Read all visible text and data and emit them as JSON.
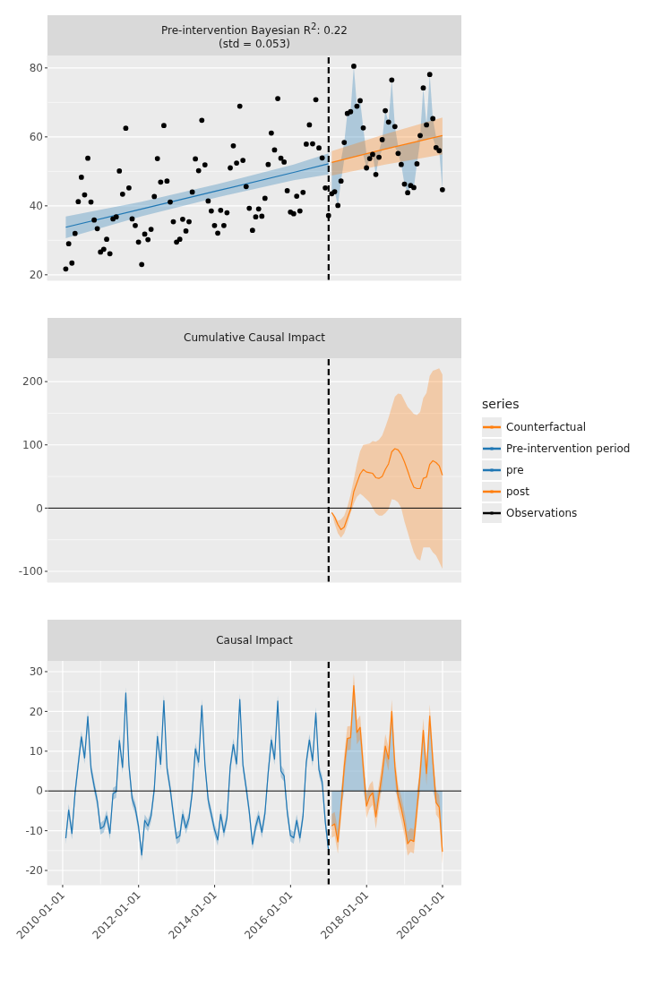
{
  "chart_data": [
    {
      "type": "scatter",
      "title": "Pre-intervention Bayesian R$^{2}$: 0.22",
      "subtitle": "(std = 0.053)",
      "grid": true,
      "tick_labels": "y",
      "legend": "right",
      "legend_title": "series",
      "xlim": [
        "2009-08-08",
        "2020-06-30"
      ],
      "xticks": [
        "2010-01-01",
        "2012-01-01",
        "2014-01-01",
        "2016-01-01",
        "2018-01-01",
        "2020-01-01"
      ],
      "ylim": [
        18.4,
        83.6
      ],
      "yticks": [
        20,
        40,
        60,
        80
      ],
      "ref_lines": [
        {
          "axis": "x",
          "value": "2017-01-01",
          "color": "#000000",
          "line_style": "dashed"
        }
      ],
      "x": [
        "2010-01-31",
        "2010-02-28",
        "2010-03-31",
        "2010-04-30",
        "2010-05-31",
        "2010-06-30",
        "2010-07-31",
        "2010-08-31",
        "2010-09-30",
        "2010-10-31",
        "2010-11-30",
        "2010-12-31",
        "2011-01-31",
        "2011-02-28",
        "2011-03-31",
        "2011-04-30",
        "2011-05-31",
        "2011-06-30",
        "2011-07-31",
        "2011-08-31",
        "2011-09-30",
        "2011-10-31",
        "2011-11-30",
        "2011-12-31",
        "2012-01-31",
        "2012-02-29",
        "2012-03-31",
        "2012-04-30",
        "2012-05-31",
        "2012-06-30",
        "2012-07-31",
        "2012-08-31",
        "2012-09-30",
        "2012-10-31",
        "2012-11-30",
        "2012-12-31",
        "2013-01-31",
        "2013-02-28",
        "2013-03-31",
        "2013-04-30",
        "2013-05-31",
        "2013-06-30",
        "2013-07-31",
        "2013-08-31",
        "2013-09-30",
        "2013-10-31",
        "2013-11-30",
        "2013-12-31",
        "2014-01-31",
        "2014-02-28",
        "2014-03-31",
        "2014-04-30",
        "2014-05-31",
        "2014-06-30",
        "2014-07-31",
        "2014-08-31",
        "2014-09-30",
        "2014-10-31",
        "2014-11-30",
        "2014-12-31",
        "2015-01-31",
        "2015-02-28",
        "2015-03-31",
        "2015-04-30",
        "2015-05-31",
        "2015-06-30",
        "2015-07-31",
        "2015-08-31",
        "2015-09-30",
        "2015-10-31",
        "2015-11-30",
        "2015-12-31",
        "2016-01-31",
        "2016-02-29",
        "2016-03-31",
        "2016-04-30",
        "2016-05-31",
        "2016-06-30",
        "2016-07-31",
        "2016-08-31",
        "2016-09-30",
        "2016-10-31",
        "2016-11-30",
        "2016-12-31",
        "2017-01-31",
        "2017-02-28",
        "2017-03-31",
        "2017-04-30",
        "2017-05-31",
        "2017-06-30",
        "2017-07-31",
        "2017-08-31",
        "2017-09-30",
        "2017-10-31",
        "2017-11-30",
        "2017-12-31",
        "2018-01-31",
        "2018-02-28",
        "2018-03-31",
        "2018-04-30",
        "2018-05-31",
        "2018-06-30",
        "2018-07-31",
        "2018-08-31",
        "2018-09-30",
        "2018-10-31",
        "2018-11-30",
        "2018-12-31",
        "2019-01-31",
        "2019-02-28",
        "2019-03-31",
        "2019-04-30",
        "2019-05-31",
        "2019-06-30",
        "2019-07-31",
        "2019-08-31",
        "2019-09-30",
        "2019-10-31",
        "2019-11-30",
        "2019-12-31"
      ],
      "series": [
        {
          "type": "area",
          "color": "#1f77b4",
          "x": [
            "2017-01-31",
            "2017-02-28",
            "2017-03-31",
            "2017-04-30",
            "2017-05-31",
            "2017-06-30",
            "2017-07-31",
            "2017-08-31",
            "2017-09-30",
            "2017-10-31",
            "2017-11-30",
            "2017-12-31",
            "2018-01-31",
            "2018-02-28",
            "2018-03-31",
            "2018-04-30",
            "2018-05-31",
            "2018-06-30",
            "2018-07-31",
            "2018-08-31",
            "2018-09-30",
            "2018-10-31",
            "2018-11-30",
            "2018-12-31",
            "2019-01-31",
            "2019-02-28",
            "2019-03-31",
            "2019-04-30",
            "2019-05-31",
            "2019-06-30",
            "2019-07-31",
            "2019-08-31",
            "2019-09-30",
            "2019-10-31",
            "2019-11-30",
            "2019-12-31"
          ],
          "values": [
            null,
            null,
            null,
            null,
            null,
            null,
            null,
            null,
            null,
            null,
            null,
            null,
            null,
            null,
            null,
            null,
            null,
            null,
            null,
            null,
            null,
            null,
            null,
            null,
            null,
            null,
            null,
            null,
            null,
            null,
            null,
            null,
            null,
            null,
            null,
            null
          ],
          "lower": [
            43.5,
            44.1,
            40.1,
            47.2,
            53.5,
            53.7,
            53.9,
            54.2,
            54.4,
            54.6,
            54.8,
            51.0,
            53.7,
            54.9,
            49.1,
            54.1,
            56.2,
            56.4,
            56.6,
            56.8,
            57.1,
            55.2,
            52.0,
            46.3,
            43.8,
            45.9,
            45.3,
            52.2,
            58.8,
            59.1,
            59.3,
            59.5,
            59.7,
            56.9,
            56.0,
            44.7
          ],
          "upper": [
            52.6,
            52.8,
            53.0,
            53.3,
            58.4,
            66.8,
            67.3,
            80.5,
            68.9,
            70.5,
            62.6,
            55.1,
            55.3,
            55.5,
            55.7,
            55.9,
            59.2,
            67.6,
            64.3,
            76.5,
            63.0,
            57.3,
            57.5,
            57.7,
            58.0,
            58.2,
            58.4,
            58.6,
            60.4,
            74.2,
            63.5,
            78.1,
            65.3,
            60.0,
            60.2,
            60.4
          ]
        },
        {
          "type": "line",
          "name": "Counterfactual",
          "color": "#ff7f0e",
          "x": [
            "2017-01-31",
            "2018-06-30",
            "2019-12-31"
          ],
          "values": [
            52.6,
            56.5,
            60.4
          ],
          "lower": [
            48.8,
            52.0,
            54.9
          ],
          "upper": [
            55.9,
            60.8,
            65.6
          ]
        },
        {
          "type": "line",
          "name": "Pre-intervention period",
          "color": "#1f77b4",
          "x": [
            "2010-01-31",
            "2012-01-31",
            "2014-01-31",
            "2016-01-31",
            "2016-12-31"
          ],
          "values": [
            33.8,
            39.1,
            44.4,
            49.7,
            52.2
          ],
          "lower": [
            30.6,
            37.0,
            42.5,
            47.4,
            49.1
          ],
          "upper": [
            36.9,
            41.2,
            46.3,
            52.0,
            55.2
          ]
        },
        {
          "name": "Observations",
          "marker": "circle",
          "color": "#000000",
          "values": [
            21.7,
            29.0,
            23.4,
            32.0,
            41.2,
            48.3,
            43.2,
            53.8,
            41.1,
            35.9,
            33.4,
            26.6,
            27.4,
            30.3,
            26.1,
            36.2,
            36.8,
            50.1,
            43.4,
            62.5,
            45.2,
            36.2,
            34.3,
            29.5,
            23.0,
            31.8,
            30.2,
            33.2,
            42.7,
            53.7,
            46.9,
            63.3,
            47.2,
            41.1,
            35.4,
            29.5,
            30.3,
            36.1,
            32.7,
            35.4,
            44.0,
            53.6,
            50.2,
            64.8,
            51.9,
            41.4,
            38.5,
            34.3,
            32.1,
            38.7,
            34.3,
            38.0,
            51.0,
            57.4,
            52.4,
            68.9,
            53.2,
            45.6,
            39.3,
            32.9,
            36.8,
            39.1,
            37.0,
            42.2,
            52.0,
            61.1,
            56.2,
            71.1,
            53.8,
            52.7,
            44.4,
            38.2,
            37.7,
            42.8,
            38.5,
            43.9,
            57.9,
            63.5,
            58.0,
            70.8,
            56.8,
            53.9,
            45.2,
            37.2,
            43.5,
            44.1,
            40.1,
            47.2,
            58.4,
            66.8,
            67.3,
            80.5,
            68.9,
            70.5,
            62.6,
            51.0,
            53.7,
            54.9,
            49.1,
            54.1,
            59.2,
            67.6,
            64.3,
            76.5,
            63.0,
            55.2,
            52.0,
            46.3,
            43.8,
            45.9,
            45.3,
            52.2,
            60.4,
            74.2,
            63.5,
            78.1,
            65.3,
            56.9,
            56.0,
            44.7
          ]
        }
      ]
    },
    {
      "type": "line",
      "title": "Cumulative Causal Impact",
      "grid": true,
      "tick_labels": "y",
      "xlim": [
        "2009-08-08",
        "2020-06-30"
      ],
      "xticks": [
        "2010-01-01",
        "2012-01-01",
        "2014-01-01",
        "2016-01-01",
        "2018-01-01",
        "2020-01-01"
      ],
      "ylim": [
        -117,
        237
      ],
      "yticks": [
        -100,
        0,
        100,
        200
      ],
      "ref_lines": [
        {
          "axis": "y",
          "value": 0,
          "color": "#000000",
          "line_style": "solid"
        },
        {
          "axis": "x",
          "value": "2017-01-01",
          "color": "#000000",
          "line_style": "dashed"
        }
      ],
      "x": [
        "2017-01-31",
        "2017-02-28",
        "2017-03-31",
        "2017-04-30",
        "2017-05-31",
        "2017-06-30",
        "2017-07-31",
        "2017-08-31",
        "2017-09-30",
        "2017-10-31",
        "2017-11-30",
        "2017-12-31",
        "2018-01-31",
        "2018-02-28",
        "2018-03-31",
        "2018-04-30",
        "2018-05-31",
        "2018-06-30",
        "2018-07-31",
        "2018-08-31",
        "2018-09-30",
        "2018-10-31",
        "2018-11-30",
        "2018-12-31",
        "2019-01-31",
        "2019-02-28",
        "2019-03-31",
        "2019-04-30",
        "2019-05-31",
        "2019-06-30",
        "2019-07-31",
        "2019-08-31",
        "2019-09-30",
        "2019-10-31",
        "2019-11-30",
        "2019-12-31"
      ],
      "series": [
        {
          "color": "#ff7f0e",
          "values": [
            -7,
            -14,
            -26,
            -34,
            -30,
            -16,
            -2,
            26,
            40,
            54,
            61,
            57,
            56,
            55,
            48,
            47,
            50,
            61,
            70,
            89,
            94,
            92,
            85,
            73,
            59,
            45,
            33,
            31,
            31,
            47,
            49,
            69,
            75,
            72,
            67,
            52
          ],
          "lower": [
            -7,
            -25,
            -40,
            -47,
            -40,
            -26,
            -8,
            7,
            18,
            23,
            19,
            14,
            9,
            0,
            -8,
            -12,
            -12,
            -8,
            -2,
            14,
            13,
            9,
            0,
            -21,
            -38,
            -54,
            -70,
            -80,
            -83,
            -62,
            -62,
            -62,
            -70,
            -75,
            -85,
            -96
          ],
          "upper": [
            -7,
            -12,
            -20,
            -18,
            -12,
            2,
            21,
            45,
            70,
            90,
            100,
            101,
            102,
            106,
            105,
            108,
            115,
            128,
            143,
            160,
            176,
            181,
            180,
            170,
            160,
            155,
            149,
            147,
            152,
            174,
            182,
            209,
            217,
            219,
            221,
            211
          ]
        }
      ]
    },
    {
      "type": "line",
      "title": "Causal Impact",
      "grid": true,
      "legend": "right",
      "xlim": [
        "2009-08-08",
        "2020-06-30"
      ],
      "xticks": [
        "2010-01-01",
        "2012-01-01",
        "2014-01-01",
        "2016-01-01",
        "2018-01-01",
        "2020-01-01"
      ],
      "ylim": [
        -23.6,
        32.7
      ],
      "yticks": [
        -20,
        -10,
        0,
        10,
        20,
        30
      ],
      "ref_lines": [
        {
          "axis": "y",
          "value": 0,
          "color": "#000000",
          "line_style": "solid"
        },
        {
          "axis": "x",
          "value": "2017-01-01",
          "color": "#000000",
          "line_style": "dashed"
        }
      ],
      "x": [
        "2010-01-31",
        "2010-02-28",
        "2010-03-31",
        "2010-04-30",
        "2010-05-31",
        "2010-06-30",
        "2010-07-31",
        "2010-08-31",
        "2010-09-30",
        "2010-10-31",
        "2010-11-30",
        "2010-12-31",
        "2011-01-31",
        "2011-02-28",
        "2011-03-31",
        "2011-04-30",
        "2011-05-31",
        "2011-06-30",
        "2011-07-31",
        "2011-08-31",
        "2011-09-30",
        "2011-10-31",
        "2011-11-30",
        "2011-12-31",
        "2012-01-31",
        "2012-02-29",
        "2012-03-31",
        "2012-04-30",
        "2012-05-31",
        "2012-06-30",
        "2012-07-31",
        "2012-08-31",
        "2012-09-30",
        "2012-10-31",
        "2012-11-30",
        "2012-12-31",
        "2013-01-31",
        "2013-02-28",
        "2013-03-31",
        "2013-04-30",
        "2013-05-31",
        "2013-06-30",
        "2013-07-31",
        "2013-08-31",
        "2013-09-30",
        "2013-10-31",
        "2013-11-30",
        "2013-12-31",
        "2014-01-31",
        "2014-02-28",
        "2014-03-31",
        "2014-04-30",
        "2014-05-31",
        "2014-06-30",
        "2014-07-31",
        "2014-08-31",
        "2014-09-30",
        "2014-10-31",
        "2014-11-30",
        "2014-12-31",
        "2015-01-31",
        "2015-02-28",
        "2015-03-31",
        "2015-04-30",
        "2015-05-31",
        "2015-06-30",
        "2015-07-31",
        "2015-08-31",
        "2015-09-30",
        "2015-10-31",
        "2015-11-30",
        "2015-12-31",
        "2016-01-31",
        "2016-02-29",
        "2016-03-31",
        "2016-04-30",
        "2016-05-31",
        "2016-06-30",
        "2016-07-31",
        "2016-08-31",
        "2016-09-30",
        "2016-10-31",
        "2016-11-30",
        "2016-12-31"
      ],
      "series": [
        {
          "type": "area",
          "color": "#1f77b4",
          "x": [
            "2017-01-31",
            "2017-02-28",
            "2017-03-31",
            "2017-04-30",
            "2017-05-31",
            "2017-06-30",
            "2017-07-31",
            "2017-08-31",
            "2017-09-30",
            "2017-10-31",
            "2017-11-30",
            "2017-12-31",
            "2018-01-31",
            "2018-02-28",
            "2018-03-31",
            "2018-04-30",
            "2018-05-31",
            "2018-06-30",
            "2018-07-31",
            "2018-08-31",
            "2018-09-30",
            "2018-10-31",
            "2018-11-30",
            "2018-12-31",
            "2019-01-31",
            "2019-02-28",
            "2019-03-31",
            "2019-04-30",
            "2019-05-31",
            "2019-06-30",
            "2019-07-31",
            "2019-08-31",
            "2019-09-30",
            "2019-10-31",
            "2019-11-30",
            "2019-12-31"
          ],
          "values": [
            null,
            null,
            null,
            null,
            null,
            null,
            null,
            null,
            null,
            null,
            null,
            null,
            null,
            null,
            null,
            null,
            null,
            null,
            null,
            null,
            null,
            null,
            null,
            null,
            null,
            null,
            null,
            null,
            null,
            null,
            null,
            null,
            null,
            null,
            null,
            null
          ],
          "lower": [
            -8.8,
            -8.3,
            -12.8,
            -4.4,
            0,
            0,
            0,
            0,
            0,
            0,
            0,
            -3.8,
            -1.4,
            -0.5,
            -6.5,
            -1.1,
            0,
            0,
            0,
            0,
            0,
            -1.4,
            -4.4,
            -8.2,
            -13.3,
            -12.3,
            -12.7,
            -4.8,
            0,
            0,
            0,
            0,
            0,
            -2.9,
            -4.1,
            -15.3
          ],
          "upper": [
            0,
            0,
            0,
            0,
            6.1,
            13.2,
            13.4,
            26.5,
            14.7,
            16.0,
            6.1,
            0,
            0,
            0,
            0,
            0,
            4.6,
            11.3,
            8.0,
            20.0,
            6.1,
            0,
            0,
            0,
            0,
            0,
            0,
            0,
            4.6,
            15.2,
            4.4,
            18.8,
            7.6,
            0,
            0,
            0
          ]
        },
        {
          "name": "pre",
          "color": "#1f77b4",
          "values": [
            -11.9,
            -4.8,
            -10.7,
            -0.5,
            6.8,
            13.6,
            8.3,
            18.7,
            5.7,
            1.2,
            -2.6,
            -9.5,
            -8.9,
            -6.3,
            -10.7,
            -0.7,
            -0.2,
            12.7,
            5.9,
            24.6,
            6.5,
            -2.0,
            -4.3,
            -8.9,
            -16.1,
            -7.4,
            -8.8,
            -6.3,
            0.5,
            13.7,
            6.7,
            22.7,
            5.7,
            0.5,
            -5.9,
            -11.9,
            -11.3,
            -5.9,
            -9.3,
            -6.8,
            -0.3,
            10.6,
            7.2,
            21.5,
            6.5,
            -2.3,
            -5.9,
            -9.7,
            -12.3,
            -5.9,
            -10.4,
            -6.7,
            6.1,
            11.7,
            6.8,
            23.0,
            6.5,
            0.8,
            -5.2,
            -13.4,
            -8.9,
            -6.3,
            -10.4,
            -5.6,
            4.6,
            12.8,
            8.0,
            22.6,
            5.0,
            3.8,
            -5.2,
            -11.2,
            -11.8,
            -7.4,
            -11.8,
            -6.3,
            7.2,
            12.8,
            7.6,
            19.6,
            5.3,
            2.3,
            -7.8,
            -14.9
          ],
          "lower": [
            -13.4,
            -6.3,
            -12.2,
            -2.0,
            5.3,
            12.1,
            6.8,
            17.2,
            4.2,
            -0.3,
            -4.1,
            -11.0,
            -10.4,
            -7.8,
            -12.2,
            -2.2,
            -1.7,
            11.2,
            4.4,
            23.1,
            5.0,
            -3.5,
            -5.8,
            -10.4,
            -17.6,
            -8.9,
            -10.3,
            -7.8,
            -1.0,
            12.2,
            5.2,
            21.2,
            4.2,
            -1.0,
            -7.4,
            -13.4,
            -12.8,
            -7.4,
            -10.8,
            -8.3,
            -1.8,
            9.1,
            5.7,
            20.0,
            5.0,
            -3.8,
            -7.4,
            -11.2,
            -13.8,
            -7.4,
            -11.9,
            -8.2,
            4.6,
            10.2,
            5.3,
            21.5,
            5.0,
            -0.7,
            -6.7,
            -14.9,
            -10.4,
            -7.8,
            -11.9,
            -7.1,
            3.1,
            11.3,
            6.5,
            21.1,
            3.5,
            2.3,
            -6.7,
            -12.7,
            -13.3,
            -8.9,
            -13.3,
            -7.8,
            5.7,
            11.3,
            6.1,
            18.1,
            3.8,
            0.8,
            -9.3,
            -16.4
          ],
          "upper": [
            -10.4,
            -3.3,
            -9.2,
            1.0,
            8.3,
            15.1,
            9.8,
            20.2,
            7.2,
            2.7,
            -1.1,
            -8.0,
            -7.4,
            -4.8,
            -9.2,
            0.8,
            1.3,
            14.2,
            7.4,
            26.1,
            8.0,
            -0.5,
            -2.8,
            -7.4,
            -14.6,
            -5.9,
            -7.3,
            -4.8,
            2.0,
            15.2,
            8.2,
            24.2,
            7.2,
            2.0,
            -4.4,
            -10.4,
            -9.8,
            -4.4,
            -7.8,
            -5.3,
            1.2,
            12.1,
            8.7,
            23.0,
            8.0,
            -0.8,
            -4.4,
            -8.2,
            -10.8,
            -4.4,
            -8.9,
            -5.2,
            7.6,
            13.2,
            8.3,
            24.5,
            8.0,
            2.3,
            -3.7,
            -11.9,
            -7.4,
            -4.8,
            -8.9,
            -4.1,
            6.1,
            14.3,
            9.5,
            24.1,
            6.5,
            5.3,
            -3.7,
            -9.7,
            -10.3,
            -5.9,
            -10.3,
            -4.8,
            8.7,
            14.3,
            9.1,
            21.1,
            6.8,
            3.8,
            -6.3,
            -13.4
          ]
        },
        {
          "name": "post",
          "color": "#ff7f0e",
          "x": [
            "2017-01-31",
            "2017-02-28",
            "2017-03-31",
            "2017-04-30",
            "2017-05-31",
            "2017-06-30",
            "2017-07-31",
            "2017-08-31",
            "2017-09-30",
            "2017-10-31",
            "2017-11-30",
            "2017-12-31",
            "2018-01-31",
            "2018-02-28",
            "2018-03-31",
            "2018-04-30",
            "2018-05-31",
            "2018-06-30",
            "2018-07-31",
            "2018-08-31",
            "2018-09-30",
            "2018-10-31",
            "2018-11-30",
            "2018-12-31",
            "2019-01-31",
            "2019-02-28",
            "2019-03-31",
            "2019-04-30",
            "2019-05-31",
            "2019-06-30",
            "2019-07-31",
            "2019-08-31",
            "2019-09-30",
            "2019-10-31",
            "2019-11-30",
            "2019-12-31"
          ],
          "values": [
            -8.8,
            -8.3,
            -12.8,
            -4.4,
            6.1,
            13.2,
            13.4,
            26.5,
            14.7,
            16.0,
            6.1,
            -3.8,
            -1.4,
            -0.5,
            -6.5,
            -1.1,
            4.6,
            11.3,
            8.0,
            20.0,
            6.1,
            -1.4,
            -4.4,
            -8.2,
            -13.3,
            -12.3,
            -12.7,
            -4.8,
            4.6,
            15.2,
            4.4,
            18.8,
            7.6,
            -2.9,
            -4.1,
            -15.3
          ],
          "lower": [
            -11.8,
            -11.3,
            -15.8,
            -7.4,
            3.1,
            10.2,
            10.4,
            23.5,
            11.7,
            13.0,
            3.1,
            -6.8,
            -4.4,
            -3.5,
            -9.5,
            -4.1,
            1.6,
            8.3,
            5.0,
            17.0,
            3.1,
            -4.4,
            -7.4,
            -11.2,
            -16.3,
            -15.3,
            -15.7,
            -7.8,
            1.6,
            12.2,
            1.4,
            15.8,
            4.6,
            -5.9,
            -7.1,
            -18.3
          ],
          "upper": [
            -5.8,
            -5.3,
            -9.8,
            -1.4,
            9.1,
            16.2,
            16.4,
            29.5,
            17.7,
            19.0,
            9.1,
            -0.8,
            1.6,
            2.5,
            -3.5,
            1.9,
            7.6,
            14.3,
            11.0,
            23.0,
            9.1,
            1.6,
            -1.4,
            -5.2,
            -10.3,
            -9.3,
            -9.7,
            -1.8,
            7.6,
            18.2,
            7.4,
            21.8,
            10.6,
            0.1,
            -1.1,
            -12.3
          ]
        }
      ]
    }
  ]
}
